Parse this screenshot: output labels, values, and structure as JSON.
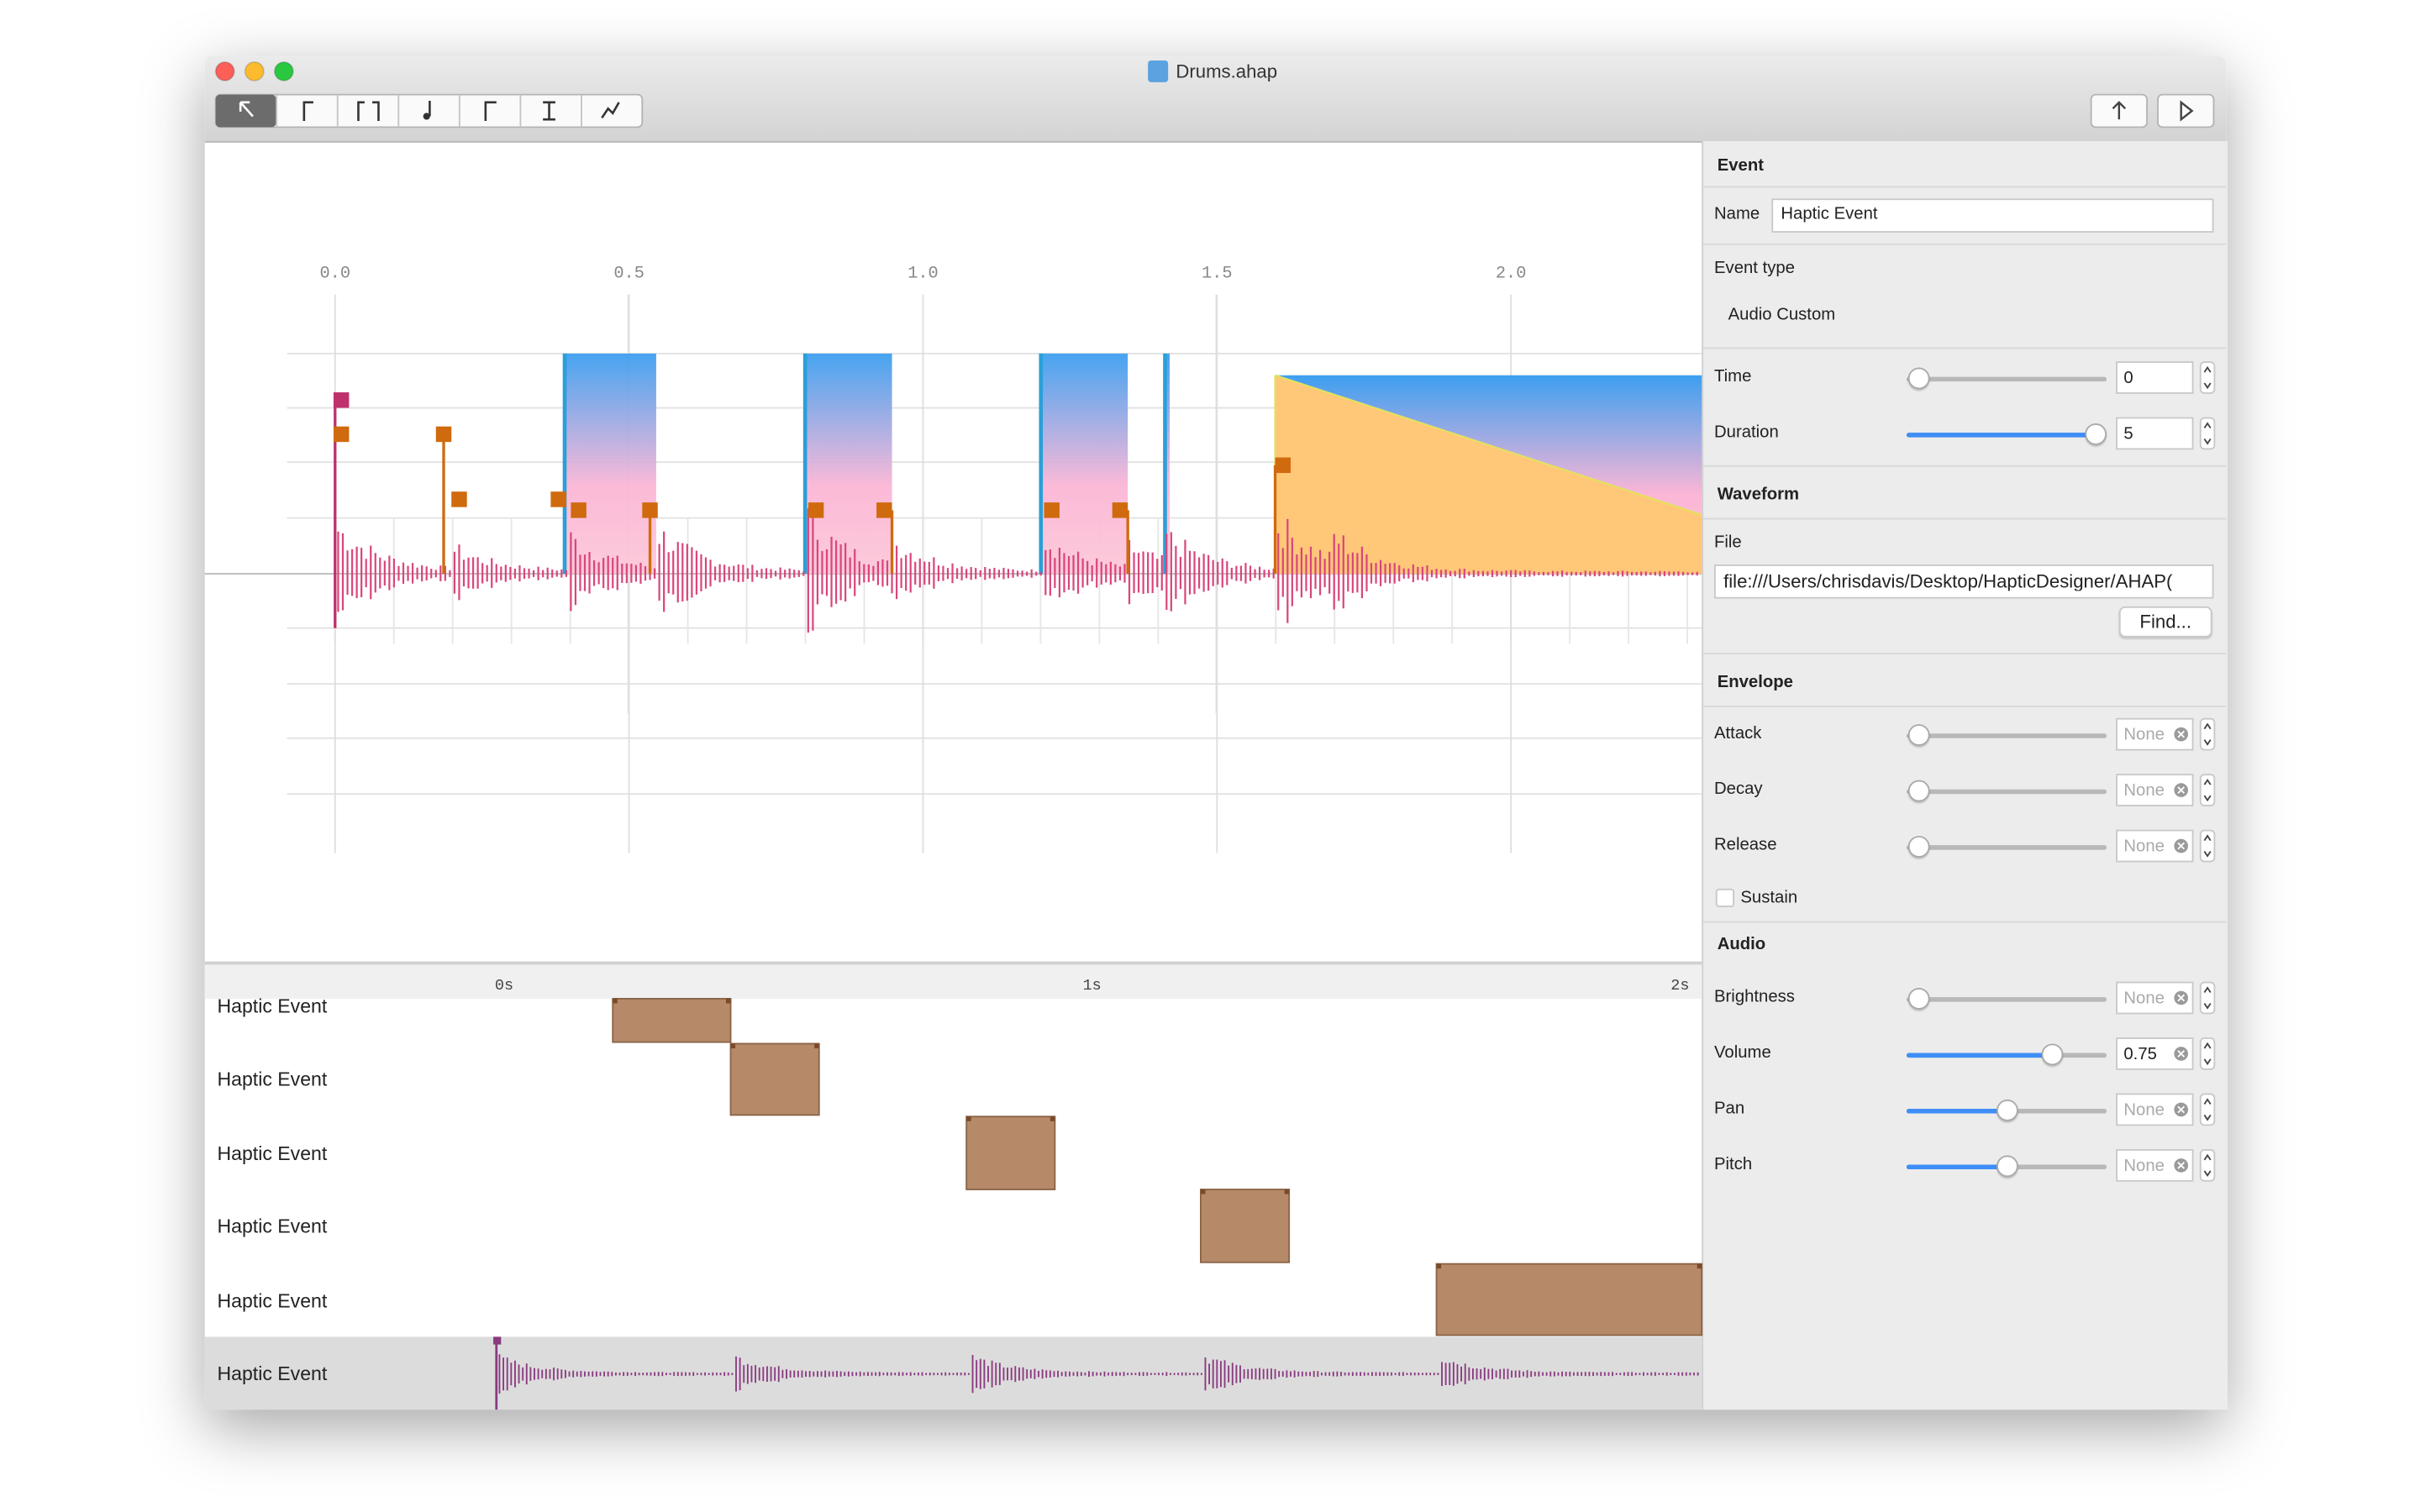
{
  "window": {
    "title": "Drums.ahap"
  },
  "editor": {
    "axis_labels": [
      "0.0",
      "0.5",
      "1.0",
      "1.5",
      "2.0"
    ]
  },
  "timeline": {
    "labels": [
      "0s",
      "1s",
      "2s"
    ],
    "tracks": [
      "Haptic Event",
      "Haptic Event",
      "Haptic Event",
      "Haptic Event",
      "Haptic Event",
      "Haptic Event"
    ]
  },
  "inspector": {
    "event_header": "Event",
    "name_label": "Name",
    "name_value": "Haptic Event",
    "event_type_label": "Event type",
    "event_type_value": "Audio Custom",
    "time_label": "Time",
    "time_value": "0",
    "duration_label": "Duration",
    "duration_value": "5",
    "waveform_header": "Waveform",
    "file_label": "File",
    "file_value": "file:///Users/chrisdavis/Desktop/HapticDesigner/AHAP(",
    "find_button": "Find...",
    "envelope_header": "Envelope",
    "attack_label": "Attack",
    "attack_value": "None",
    "decay_label": "Decay",
    "decay_value": "None",
    "release_label": "Release",
    "release_value": "None",
    "sustain_label": "Sustain",
    "audio_header": "Audio",
    "brightness_label": "Brightness",
    "brightness_value": "None",
    "volume_label": "Volume",
    "volume_value": "0.75",
    "pan_label": "Pan",
    "pan_value": "None",
    "pitch_label": "Pitch",
    "pitch_value": "None"
  }
}
